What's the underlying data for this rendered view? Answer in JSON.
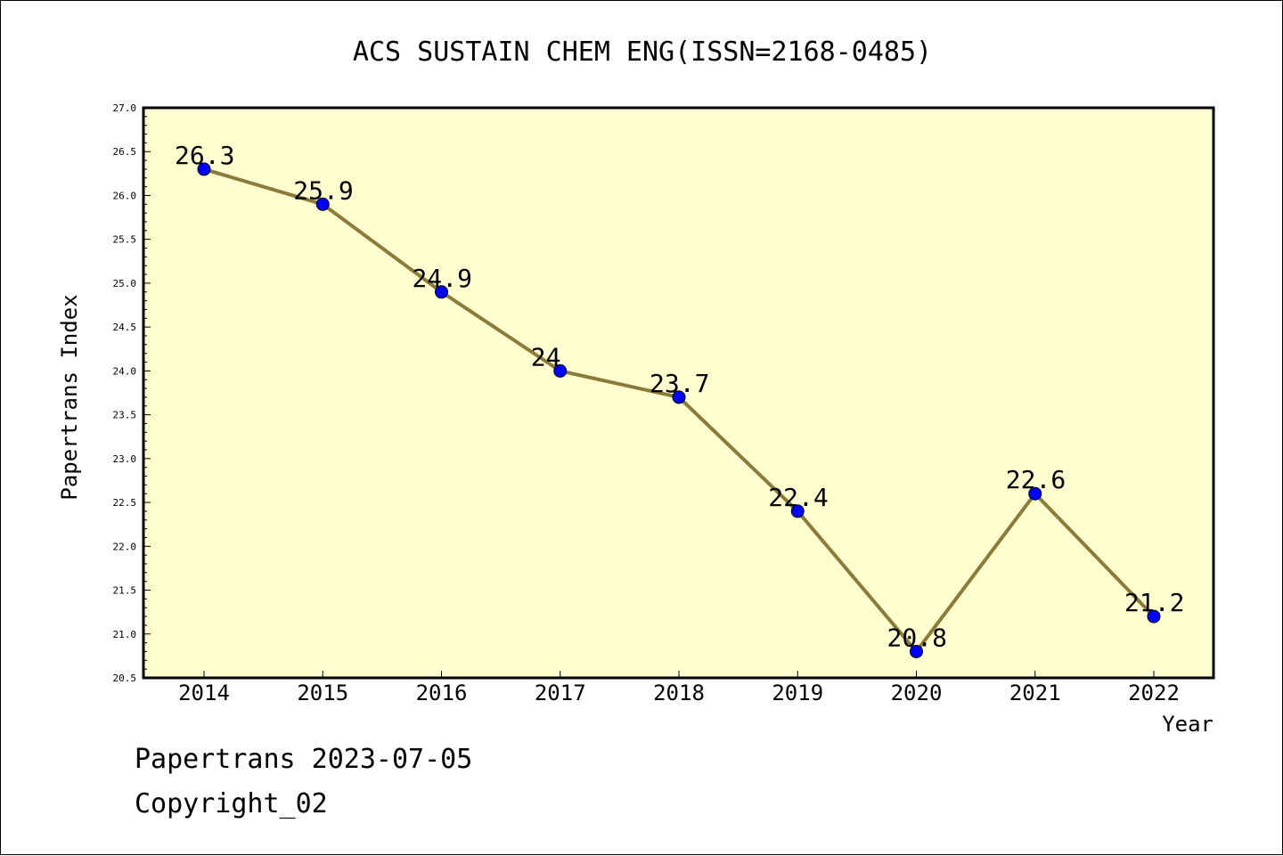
{
  "chart_data": {
    "type": "line",
    "title": "ACS SUSTAIN CHEM ENG(ISSN=2168-0485)",
    "xlabel": "Year",
    "ylabel": "Papertrans Index",
    "categories": [
      "2014",
      "2015",
      "2016",
      "2017",
      "2018",
      "2019",
      "2020",
      "2021",
      "2022"
    ],
    "values": [
      26.3,
      25.9,
      24.9,
      24,
      23.7,
      22.4,
      20.8,
      22.6,
      21.2
    ],
    "data_labels": [
      "26.3",
      "25.9",
      "24.9",
      "24",
      "23.7",
      "22.4",
      "20.8",
      "22.6",
      "21.2"
    ],
    "ylim": [
      20.5,
      27.0
    ],
    "y_ticks": [
      "20.5",
      "21.0",
      "21.5",
      "22.0",
      "22.5",
      "23.0",
      "23.5",
      "24.0",
      "24.5",
      "25.0",
      "25.5",
      "26.0",
      "26.5",
      "27.0"
    ],
    "colors": {
      "plot_background": "#ffffd0",
      "line": "#8c7b38",
      "marker": "#0000ff"
    },
    "grid": false,
    "legend": "none"
  },
  "footer": {
    "date_line": "Papertrans 2023-07-05",
    "copyright_line": "Copyright_02"
  }
}
